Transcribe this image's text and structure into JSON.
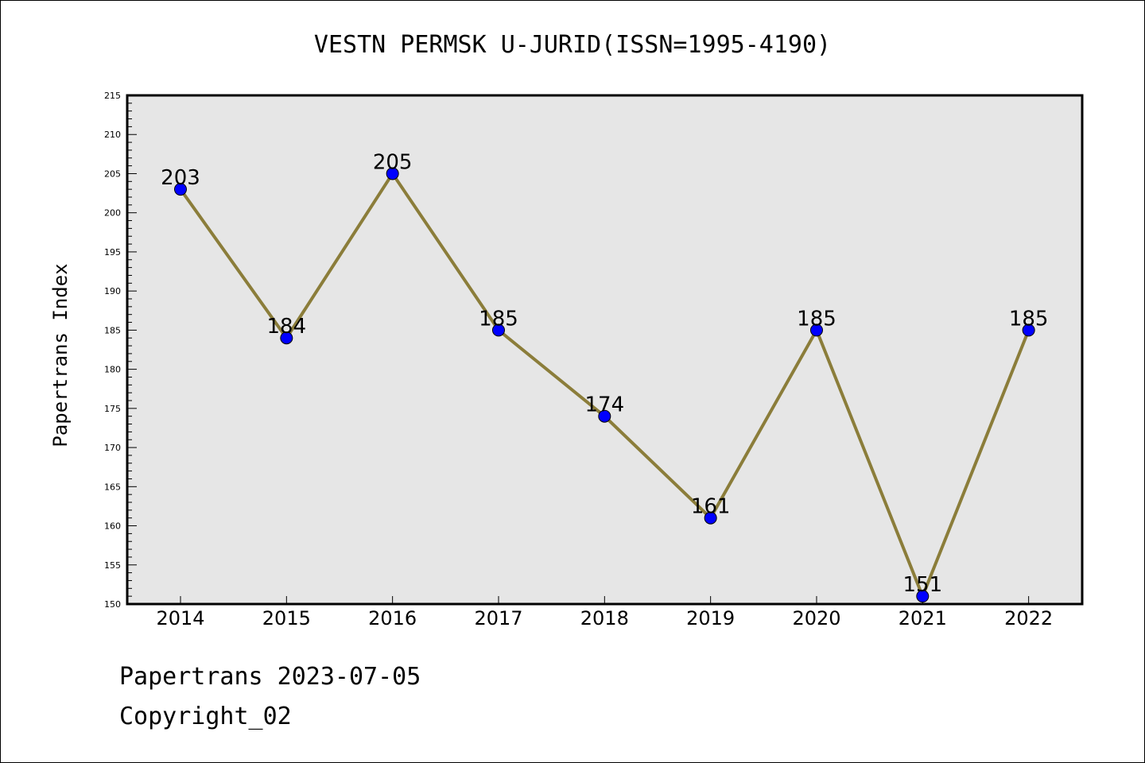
{
  "chart_data": {
    "type": "line",
    "title": "VESTN PERMSK U-JURID(ISSN=1995-4190)",
    "xlabel": "",
    "ylabel": "Papertrans Index",
    "x": [
      "2014",
      "2015",
      "2016",
      "2017",
      "2018",
      "2019",
      "2020",
      "2021",
      "2022"
    ],
    "values": [
      203,
      184,
      205,
      185,
      174,
      161,
      185,
      151,
      185
    ],
    "ylim": [
      150,
      215
    ],
    "y_major_step": 5,
    "y_minor_step": 1,
    "grid": false,
    "line_color": "#8B7D3A",
    "marker_color": "#0000FF",
    "plot_background": "#E6E6E6",
    "data_labels": true
  },
  "footer": {
    "line1": "Papertrans 2023-07-05",
    "line2": "Copyright_02"
  }
}
